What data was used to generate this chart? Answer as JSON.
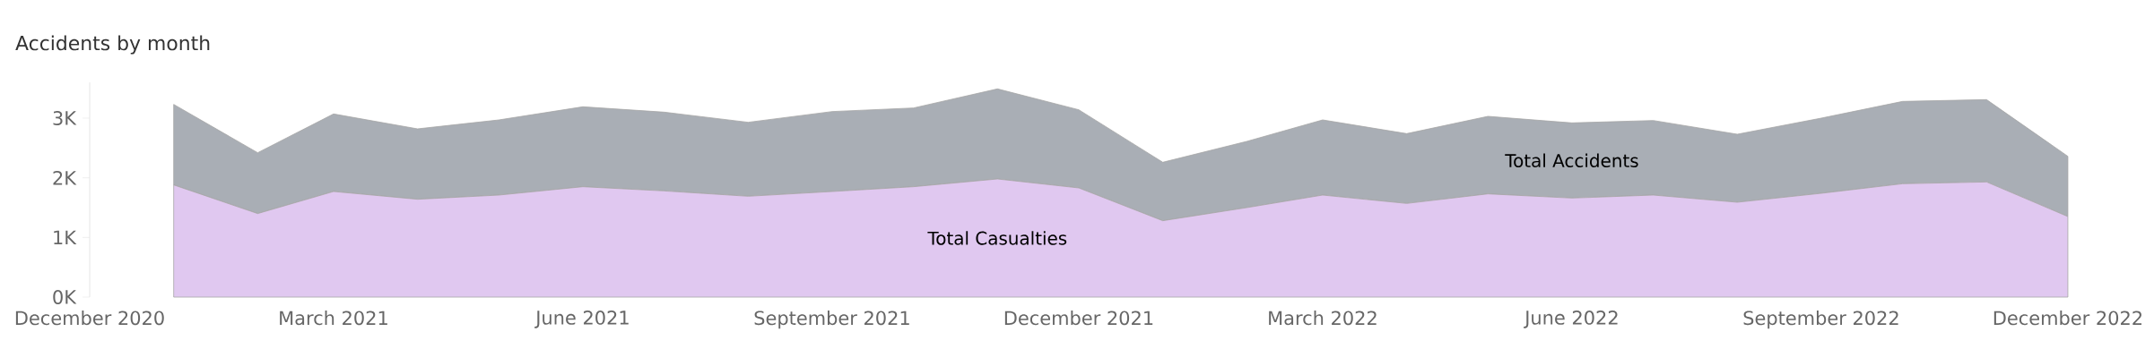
{
  "chart_data": {
    "type": "area",
    "title": "Accidents by month",
    "stacked": true,
    "x": [
      "2021-01",
      "2021-02",
      "2021-03",
      "2021-04",
      "2021-05",
      "2021-06",
      "2021-07",
      "2021-08",
      "2021-09",
      "2021-10",
      "2021-11",
      "2021-12",
      "2022-01",
      "2022-02",
      "2022-03",
      "2022-04",
      "2022-05",
      "2022-06",
      "2022-07",
      "2022-08",
      "2022-09",
      "2022-10",
      "2022-11",
      "2022-12"
    ],
    "series": [
      {
        "name": "Total Casualties",
        "color": "#e0c8f0",
        "values": [
          1880,
          1400,
          1770,
          1640,
          1710,
          1850,
          1780,
          1690,
          1770,
          1850,
          1980,
          1830,
          1280,
          1500,
          1710,
          1570,
          1730,
          1660,
          1710,
          1590,
          1740,
          1900,
          1930,
          1350
        ]
      },
      {
        "name": "Total Accidents",
        "color": "#a9aeb5",
        "values": [
          1350,
          1020,
          1300,
          1180,
          1260,
          1340,
          1320,
          1240,
          1340,
          1320,
          1510,
          1310,
          980,
          1110,
          1260,
          1170,
          1300,
          1260,
          1250,
          1140,
          1260,
          1380,
          1380,
          1010
        ]
      }
    ],
    "xticks": [
      {
        "value": "2020-12",
        "label": "December 2020"
      },
      {
        "value": "2021-03",
        "label": "March 2021"
      },
      {
        "value": "2021-06",
        "label": "June 2021"
      },
      {
        "value": "2021-09",
        "label": "September 2021"
      },
      {
        "value": "2021-12",
        "label": "December 2021"
      },
      {
        "value": "2022-03",
        "label": "March 2022"
      },
      {
        "value": "2022-06",
        "label": "June 2022"
      },
      {
        "value": "2022-09",
        "label": "September 2022"
      },
      {
        "value": "2022-12",
        "label": "December 2022"
      }
    ],
    "xlim": [
      "2020-12",
      "2022-12"
    ],
    "ylim": [
      0,
      3600
    ],
    "yticks": [
      {
        "value": 0,
        "label": "0K"
      },
      {
        "value": 1000,
        "label": "1K"
      },
      {
        "value": 2000,
        "label": "2K"
      },
      {
        "value": 3000,
        "label": "3K"
      }
    ],
    "grid": false,
    "legend": false
  }
}
